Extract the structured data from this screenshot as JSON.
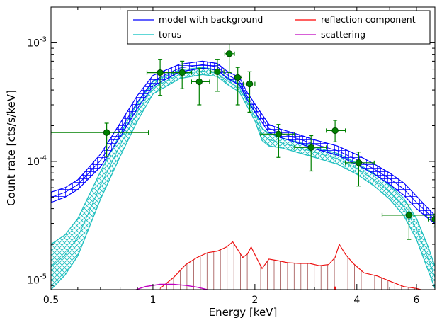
{
  "chart_data": {
    "type": "line",
    "xscale": "log",
    "yscale": "log",
    "xlim": [
      0.5,
      6.8
    ],
    "ylim": [
      8.3e-06,
      0.002
    ],
    "xlabel": "Energy [keV]",
    "ylabel": "Count rate [cts/s/keV]",
    "x_ticks": [
      {
        "value": 0.5,
        "label": "0.5"
      },
      {
        "value": 1,
        "label": "1"
      },
      {
        "value": 2,
        "label": "2"
      },
      {
        "value": 4,
        "label": "4"
      },
      {
        "value": 6,
        "label": "6"
      }
    ],
    "y_ticks": [
      {
        "value": 0.001,
        "base": "10",
        "exp": "-3"
      },
      {
        "value": 0.0001,
        "base": "10",
        "exp": "-4"
      },
      {
        "value": 1e-05,
        "base": "10",
        "exp": "-5"
      }
    ],
    "grid": false,
    "legend": {
      "placement": "top-right",
      "columns": 2,
      "entries": [
        {
          "label": "model with background",
          "color": "#0000ff"
        },
        {
          "label": "reflection component",
          "color": "#ff0000"
        },
        {
          "label": "torus",
          "color": "#00bfbf"
        },
        {
          "label": "scattering",
          "color": "#bf00bf"
        }
      ]
    },
    "colors": {
      "model": "#0000ff",
      "torus": "#1fbfbf",
      "reflection": "#ee1111",
      "reflection_hatch": "#a05050",
      "scattering": "#bf00bf",
      "data": "#008000",
      "data_edge": "#004000"
    },
    "series": [
      {
        "name": "model with background",
        "x": [
          0.5,
          0.55,
          0.6,
          0.7,
          0.8,
          0.9,
          1.0,
          1.2,
          1.4,
          1.55,
          1.65,
          1.8,
          1.9,
          2.0,
          2.2,
          2.4,
          2.7,
          3.0,
          3.5,
          4.0,
          4.5,
          5.0,
          5.5,
          6.0,
          6.5,
          6.8
        ],
        "lower": [
          4.5e-05,
          5e-05,
          5.8e-05,
          9e-05,
          0.00016,
          0.00028,
          0.00043,
          0.00057,
          0.00061,
          0.00059,
          0.000505,
          0.00044,
          0.00033,
          0.00026,
          0.000175,
          0.000158,
          0.000142,
          0.000128,
          0.000113,
          9.4e-05,
          7.8e-05,
          6.4e-05,
          5.2e-05,
          4e-05,
          3.3e-05,
          3e-05
        ],
        "upper": [
          5.5e-05,
          6e-05,
          7e-05,
          0.000115,
          0.00021,
          0.00036,
          0.00053,
          0.00066,
          0.0007,
          0.00067,
          0.00058,
          0.00051,
          0.00038,
          0.000305,
          0.000205,
          0.000186,
          0.000168,
          0.000152,
          0.000135,
          0.000114,
          9.5e-05,
          8e-05,
          6.6e-05,
          5.1e-05,
          4e-05,
          3.5e-05
        ]
      },
      {
        "name": "torus",
        "x": [
          0.5,
          0.55,
          0.6,
          0.7,
          0.8,
          0.9,
          1.0,
          1.2,
          1.4,
          1.55,
          1.65,
          1.8,
          1.9,
          2.0,
          2.1,
          2.2,
          2.4,
          2.7,
          3.0,
          3.5,
          4.0,
          4.5,
          5.0,
          5.5,
          6.0,
          6.5,
          6.8
        ],
        "lower": [
          8.3e-06,
          1.1e-05,
          1.6e-05,
          4.8e-05,
          0.00011,
          0.00022,
          0.00037,
          0.0005,
          0.00054,
          0.00052,
          0.00045,
          0.000385,
          0.00029,
          0.00022,
          0.00015,
          0.000135,
          0.00013,
          0.000118,
          0.000108,
          9.5e-05,
          7.8e-05,
          6.2e-05,
          4.8e-05,
          3.5e-05,
          2.2e-05,
          1.2e-05,
          8.5e-06
        ],
        "upper": [
          2e-05,
          2.4e-05,
          3.3e-05,
          8.2e-05,
          0.00017,
          0.00031,
          0.00047,
          0.00059,
          0.00062,
          0.00059,
          0.000515,
          0.00045,
          0.00034,
          0.000265,
          0.00019,
          0.000172,
          0.000158,
          0.000145,
          0.000132,
          0.000117,
          9.7e-05,
          7.9e-05,
          6.3e-05,
          4.9e-05,
          3.3e-05,
          1.9e-05,
          1.3e-05
        ]
      },
      {
        "name": "reflection component",
        "x": [
          1.05,
          1.15,
          1.25,
          1.35,
          1.45,
          1.55,
          1.65,
          1.72,
          1.78,
          1.84,
          1.9,
          1.95,
          2.02,
          2.1,
          2.2,
          2.35,
          2.5,
          2.7,
          2.9,
          3.1,
          3.3,
          3.45,
          3.55,
          3.7,
          3.9,
          4.2,
          4.6,
          5.0,
          5.5,
          6.0,
          6.5
        ],
        "values": [
          8.5e-06,
          1.05e-05,
          1.35e-05,
          1.55e-05,
          1.7e-05,
          1.75e-05,
          1.9e-05,
          2.1e-05,
          1.8e-05,
          1.55e-05,
          1.65e-05,
          1.9e-05,
          1.55e-05,
          1.25e-05,
          1.5e-05,
          1.45e-05,
          1.4e-05,
          1.38e-05,
          1.38e-05,
          1.32e-05,
          1.35e-05,
          1.55e-05,
          2e-05,
          1.65e-05,
          1.38e-05,
          1.15e-05,
          1.08e-05,
          9.8e-06,
          8.8e-06,
          8.5e-06,
          8e-06
        ]
      },
      {
        "name": "scattering",
        "x": [
          0.88,
          0.95,
          1.05,
          1.15,
          1.25,
          1.35,
          1.45
        ],
        "values": [
          8.2e-06,
          8.8e-06,
          9.2e-06,
          9.2e-06,
          9e-06,
          8.7e-06,
          8.3e-06
        ]
      },
      {
        "name": "data",
        "points": [
          {
            "x": 0.73,
            "y": 0.000175,
            "xlo": 0.5,
            "xhi": 0.97,
            "ylo": 0.00011,
            "yhi": 0.00021
          },
          {
            "x": 1.05,
            "y": 0.00056,
            "xlo": 0.96,
            "xhi": 1.15,
            "ylo": 0.00036,
            "yhi": 0.00072
          },
          {
            "x": 1.22,
            "y": 0.00056,
            "xlo": 1.15,
            "xhi": 1.3,
            "ylo": 0.00041,
            "yhi": 0.0007
          },
          {
            "x": 1.37,
            "y": 0.00047,
            "xlo": 1.3,
            "xhi": 1.47,
            "ylo": 0.0003,
            "yhi": 0.00061
          },
          {
            "x": 1.55,
            "y": 0.00057,
            "xlo": 1.48,
            "xhi": 1.62,
            "ylo": 0.00039,
            "yhi": 0.00072
          },
          {
            "x": 1.68,
            "y": 0.00081,
            "xlo": 1.63,
            "xhi": 1.74,
            "ylo": 0.00056,
            "yhi": 0.001
          },
          {
            "x": 1.78,
            "y": 0.00051,
            "xlo": 1.74,
            "xhi": 1.83,
            "ylo": 0.0003,
            "yhi": 0.00062
          },
          {
            "x": 1.93,
            "y": 0.00045,
            "xlo": 1.85,
            "xhi": 2.0,
            "ylo": 0.00026,
            "yhi": 0.00057
          },
          {
            "x": 2.35,
            "y": 0.00017,
            "xlo": 2.08,
            "xhi": 2.62,
            "ylo": 0.000108,
            "yhi": 0.000205
          },
          {
            "x": 2.93,
            "y": 0.000131,
            "xlo": 2.62,
            "xhi": 3.25,
            "ylo": 8.3e-05,
            "yhi": 0.000165
          },
          {
            "x": 3.45,
            "y": 0.000182,
            "xlo": 3.25,
            "xhi": 3.7,
            "ylo": 0.000146,
            "yhi": 0.000222
          },
          {
            "x": 4.05,
            "y": 9.75e-05,
            "xlo": 3.7,
            "xhi": 4.5,
            "ylo": 6.2e-05,
            "yhi": 0.00012
          },
          {
            "x": 5.7,
            "y": 3.52e-05,
            "xlo": 4.75,
            "xhi": 6.8,
            "ylo": 2.2e-05,
            "yhi": 4.3e-05
          },
          {
            "x": 6.8,
            "y": 3.25e-05,
            "xlo": 6.5,
            "xhi": 6.8,
            "ylo": 2.8e-05,
            "yhi": 3.6e-05
          }
        ]
      }
    ]
  }
}
